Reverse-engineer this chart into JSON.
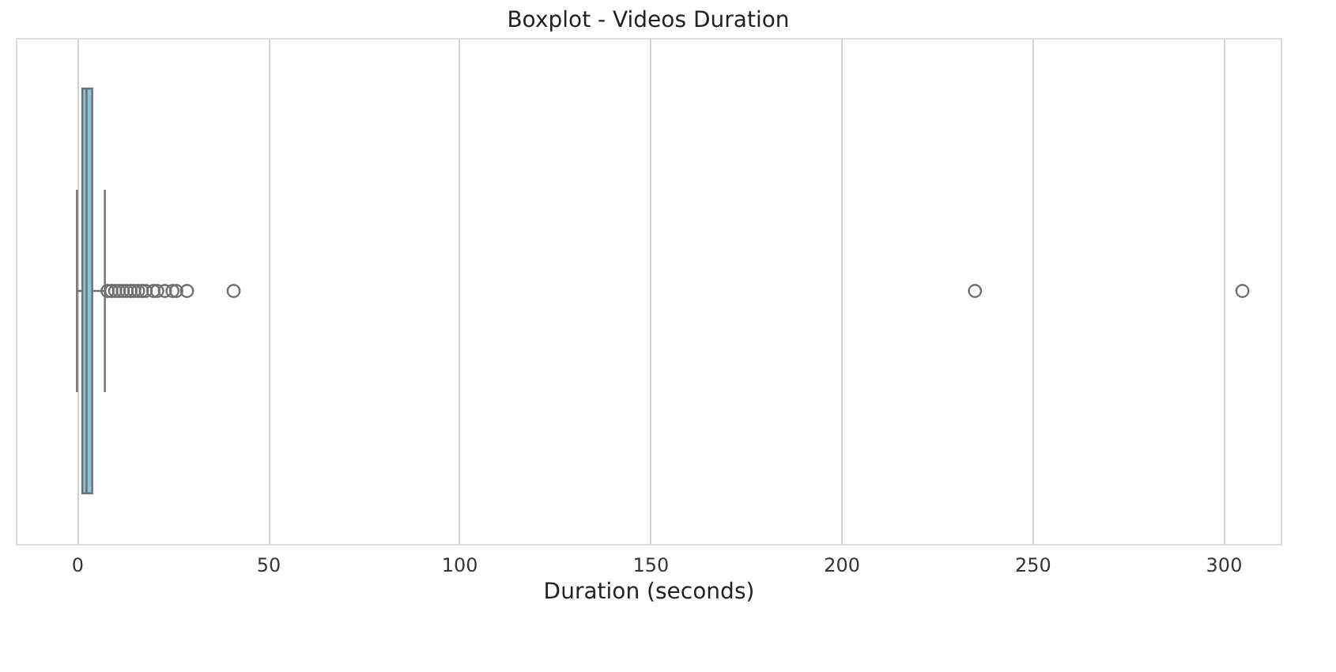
{
  "chart_data": {
    "type": "box",
    "title": "Boxplot - Videos Duration",
    "xlabel": "Duration (seconds)",
    "orientation": "horizontal",
    "categories": [
      null
    ],
    "color": "#8cc3dc",
    "boxes": [
      {
        "low": 0,
        "q1": 1.4,
        "median": 2.5,
        "q3": 4.0,
        "high": 7.3,
        "outliers": [
          8,
          9,
          10,
          11,
          12,
          13,
          14,
          15,
          16,
          17,
          18,
          20,
          21,
          23,
          25,
          26,
          28.8,
          41,
          235,
          305
        ]
      }
    ],
    "xlim": [
      -16,
      315
    ],
    "xticks": [
      0,
      50,
      100,
      150,
      200,
      250,
      300
    ],
    "grid": "x",
    "tick_labels": "x"
  }
}
